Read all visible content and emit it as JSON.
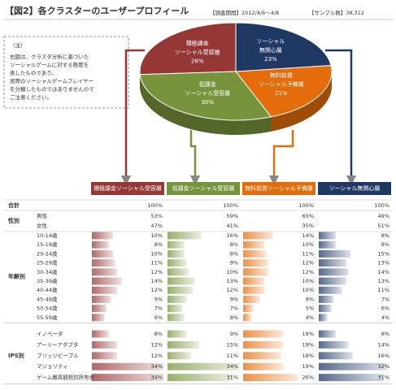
{
  "header": {
    "title": "【図2】各クラスターのユーザープロフィール",
    "period": "【調査期間】2012/4/6～4/8",
    "sample": "【サンプル数】38,312"
  },
  "note": {
    "label": "（注）",
    "lines": [
      "右図は、クラスタ分析に基づいた",
      "ソーシャルゲームに対する態度を",
      "表したものであり、",
      "実際のソーシャルゲームプレイヤー",
      "を分類したものではありませんので",
      "ご注意ください。"
    ]
  },
  "chart_data": {
    "type": "pie",
    "categories": [
      "積極課金ソーシャル受容層",
      "低課金ソーシャル受容層",
      "無料前提ソーシャル予備層",
      "ソーシャル無関心層"
    ],
    "label_lines": [
      [
        "積極課金",
        "ソーシャル受容層"
      ],
      [
        "低課金",
        "ソーシャル受容層"
      ],
      [
        "無料前提",
        "ソーシャル予備層"
      ],
      [
        "ソーシャル",
        "無関心層"
      ]
    ],
    "values": [
      26,
      30,
      21,
      23
    ],
    "value_labels": [
      "26%",
      "30%",
      "21%",
      "23%"
    ],
    "colors": [
      "#953735",
      "#77933c",
      "#e46c0a",
      "#1f3864"
    ]
  },
  "table": {
    "total": {
      "label": "合計",
      "values": [
        100,
        100,
        100,
        100
      ],
      "value_labels": [
        "100%",
        "100%",
        "100%",
        "100%"
      ]
    },
    "groups": [
      {
        "label": "性別",
        "bars": false,
        "rows": [
          {
            "label": "男性",
            "values": [
              53,
              59,
              65,
              49
            ],
            "value_labels": [
              "53%",
              "59%",
              "65%",
              "49%"
            ]
          },
          {
            "label": "女性",
            "values": [
              47,
              41,
              35,
              51
            ],
            "value_labels": [
              "47%",
              "41%",
              "35%",
              "51%"
            ]
          }
        ]
      },
      {
        "label": "年齢別",
        "bars": true,
        "rows": [
          {
            "label": "10-14歳",
            "values": [
              10,
              16,
              14,
              8
            ],
            "value_labels": [
              "10%",
              "16%",
              "14%",
              "8%"
            ]
          },
          {
            "label": "15-19歳",
            "values": [
              8,
              8,
              10,
              8
            ],
            "value_labels": [
              "8%",
              "8%",
              "10%",
              "8%"
            ]
          },
          {
            "label": "20-24歳",
            "values": [
              10,
              8,
              11,
              15
            ],
            "value_labels": [
              "10%",
              "8%",
              "11%",
              "15%"
            ]
          },
          {
            "label": "25-29歳",
            "values": [
              11,
              9,
              12,
              13
            ],
            "value_labels": [
              "11%",
              "9%",
              "12%",
              "13%"
            ]
          },
          {
            "label": "30-34歳",
            "values": [
              12,
              10,
              12,
              14
            ],
            "value_labels": [
              "12%",
              "10%",
              "12%",
              "14%"
            ]
          },
          {
            "label": "35-39歳",
            "values": [
              14,
              13,
              10,
              13
            ],
            "value_labels": [
              "14%",
              "13%",
              "10%",
              "13%"
            ]
          },
          {
            "label": "40-44歳",
            "values": [
              12,
              12,
              10,
              11
            ],
            "value_labels": [
              "12%",
              "12%",
              "10%",
              "11%"
            ]
          },
          {
            "label": "45-49歳",
            "values": [
              9,
              9,
              8,
              7
            ],
            "value_labels": [
              "9%",
              "9%",
              "8%",
              "7%"
            ]
          },
          {
            "label": "50-54歳",
            "values": [
              7,
              7,
              5,
              6
            ],
            "value_labels": [
              "7%",
              "7%",
              "5%",
              "6%"
            ]
          },
          {
            "label": "55-59歳",
            "values": [
              6,
              8,
              4,
              4
            ],
            "value_labels": [
              "6%",
              "8%",
              "4%",
              "4%"
            ]
          }
        ]
      },
      {
        "label": "IPS別",
        "bars": true,
        "rows": [
          {
            "label": "イノベータ",
            "values": [
              8,
              9,
              19,
              8
            ],
            "value_labels": [
              "8%",
              "9%",
              "19%",
              "8%"
            ]
          },
          {
            "label": "アーリーアダプタ",
            "values": [
              12,
              15,
              19,
              14
            ],
            "value_labels": [
              "12%",
              "15%",
              "19%",
              "14%"
            ]
          },
          {
            "label": "ブリッジピープル",
            "values": [
              12,
              11,
              18,
              16
            ],
            "value_labels": [
              "12%",
              "11%",
              "18%",
              "16%"
            ]
          },
          {
            "label": "マジョリティ",
            "values": [
              34,
              34,
              19,
              32
            ],
            "value_labels": [
              "34%",
              "34%",
              "19%",
              "32%"
            ]
          },
          {
            "label": "ゲーム最高額抵抗所有者",
            "values": [
              34,
              31,
              26,
              31
            ],
            "value_labels": [
              "34%",
              "31%",
              "26%",
              "31%"
            ]
          }
        ]
      }
    ]
  }
}
